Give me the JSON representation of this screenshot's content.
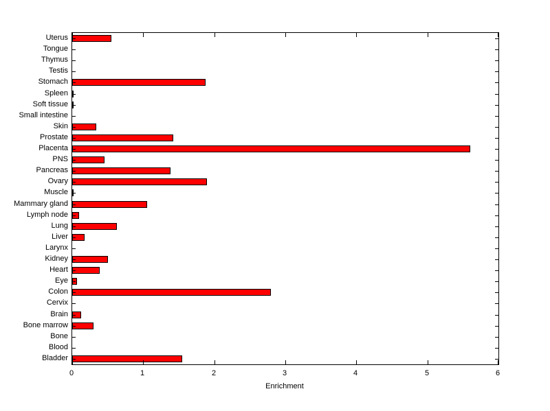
{
  "figure": {
    "background": "#ffffff"
  },
  "chart_data": {
    "type": "bar",
    "orientation": "horizontal",
    "title": "",
    "xlabel": "Enrichment",
    "ylabel": "",
    "xlim": [
      0,
      6
    ],
    "xticks": [
      0,
      1,
      2,
      3,
      4,
      5,
      6
    ],
    "grid": false,
    "legend": false,
    "bar_color": "#ff0000",
    "bar_edge_color": "#000000",
    "categories_top_to_bottom": [
      "Uterus",
      "Tongue",
      "Thymus",
      "Testis",
      "Stomach",
      "Spleen",
      "Soft tissue",
      "Small intestine",
      "Skin",
      "Prostate",
      "Placenta",
      "PNS",
      "Pancreas",
      "Ovary",
      "Muscle",
      "Mammary gland",
      "Lymph node",
      "Lung",
      "Liver",
      "Larynx",
      "Kidney",
      "Heart",
      "Eye",
      "Colon",
      "Cervix",
      "Brain",
      "Bone marrow",
      "Bone",
      "Blood",
      "Bladder"
    ],
    "values_top_to_bottom": [
      0.55,
      0,
      0,
      0,
      1.88,
      0.02,
      0.02,
      0,
      0.34,
      1.42,
      5.6,
      0.45,
      1.38,
      1.9,
      0.02,
      1.05,
      0.1,
      0.63,
      0.17,
      0,
      0.5,
      0.39,
      0.07,
      2.8,
      0,
      0.13,
      0.3,
      0,
      0,
      1.55
    ]
  }
}
